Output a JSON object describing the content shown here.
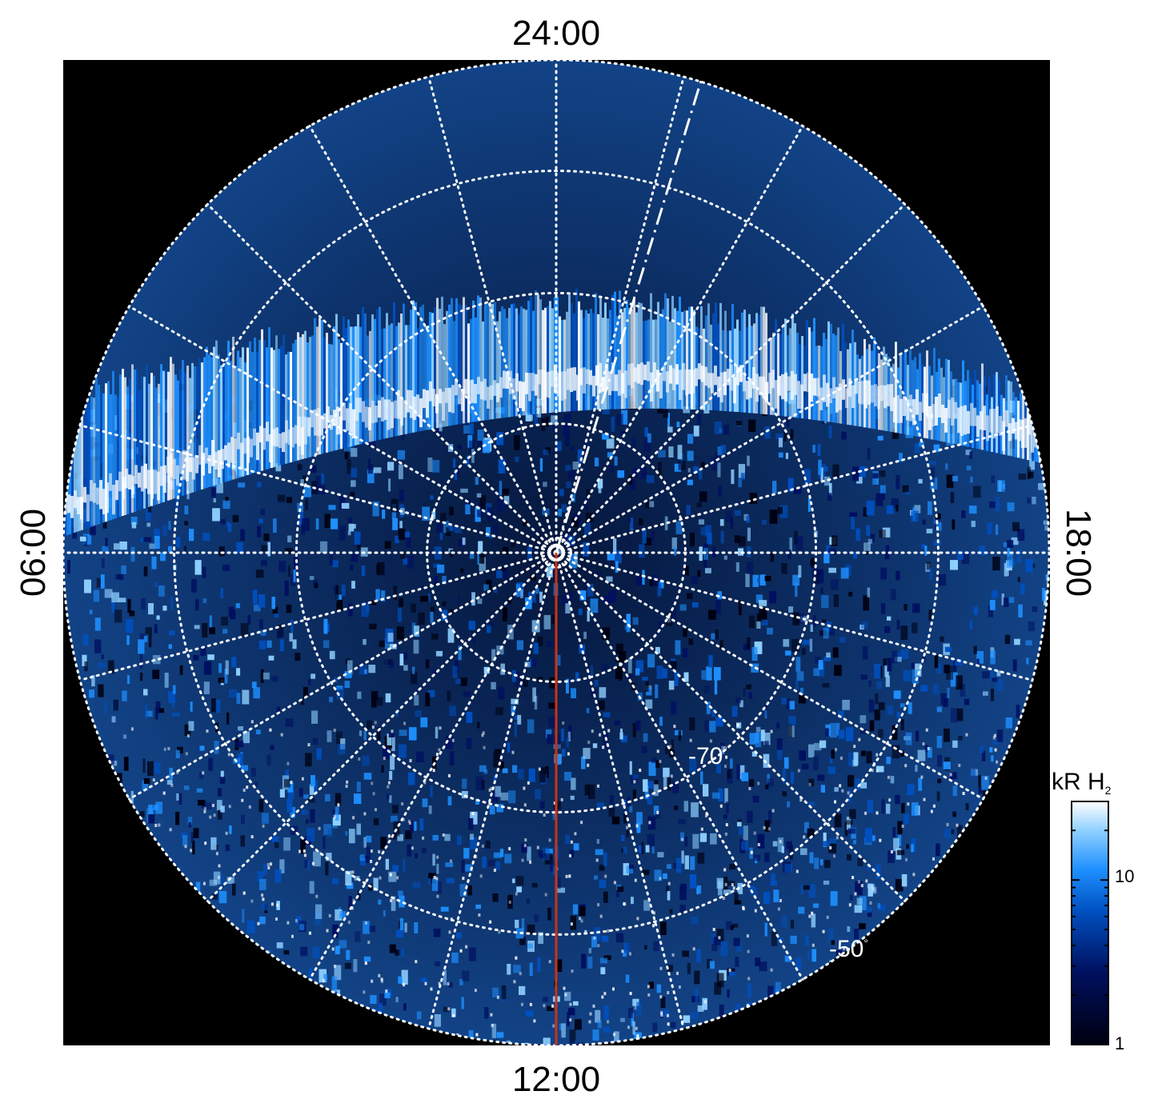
{
  "figure": {
    "local_time_labels": {
      "top": "24:00",
      "bottom": "12:00",
      "left": "06:00",
      "right": "18:00"
    },
    "latitude_labels": [
      {
        "text": "-70",
        "unit": "°"
      },
      {
        "text": "-50",
        "unit": "°"
      }
    ],
    "colorbar": {
      "title": "kR H",
      "title_subscript": "2",
      "scale": "log",
      "range": [
        1,
        30
      ],
      "tick_labels": [
        {
          "value": 1,
          "text": "1"
        },
        {
          "value": 10,
          "text": "10"
        }
      ],
      "colors": [
        "#000010",
        "#001060",
        "#0050c0",
        "#1e90ff",
        "#8fd0ff",
        "#ffffff"
      ]
    },
    "colors": {
      "background": "#000000",
      "grid": "#ffffff",
      "meridian_line": "#cc3311",
      "auroral_oval": "#1e90ff"
    }
  }
}
